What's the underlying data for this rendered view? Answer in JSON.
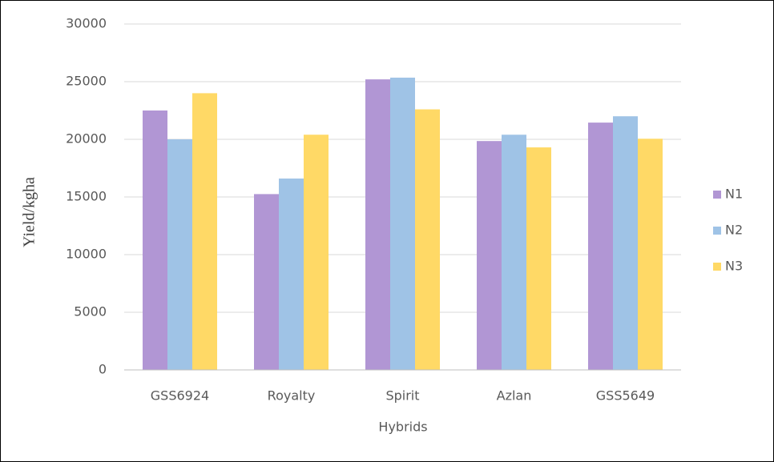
{
  "chart_data": {
    "type": "bar",
    "xlabel": "Hybrids",
    "ylabel": "Yield/kgha",
    "categories": [
      "GSS6924",
      "Royalty",
      "Spirit",
      "Azlan",
      "GSS5649"
    ],
    "series": [
      {
        "name": "N1",
        "color": "#b196d4",
        "values": [
          22500,
          15250,
          25200,
          19850,
          21450
        ]
      },
      {
        "name": "N2",
        "color": "#9fc3e6",
        "values": [
          20000,
          16600,
          25350,
          20400,
          22000
        ]
      },
      {
        "name": "N3",
        "color": "#ffd966",
        "values": [
          24000,
          20400,
          22600,
          19300,
          20050
        ]
      }
    ],
    "ylim": [
      0,
      30000
    ],
    "yticks": [
      0,
      5000,
      10000,
      15000,
      20000,
      25000,
      30000
    ],
    "grid": true,
    "legend": "right"
  }
}
